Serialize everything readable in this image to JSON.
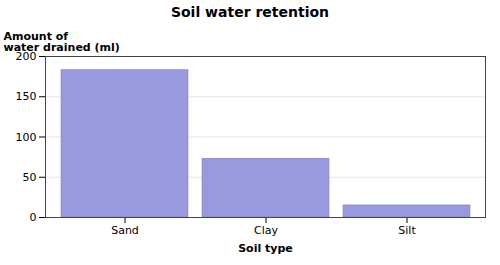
{
  "chart_data": {
    "type": "bar",
    "title": "Soil water retention",
    "xlabel": "Soil type",
    "ylabel": "Amount of\nwater drained (ml)",
    "categories": [
      "Sand",
      "Clay",
      "Silt"
    ],
    "values": [
      183,
      73,
      15
    ],
    "color": "#9999dd",
    "ylim": [
      0,
      200
    ],
    "yticks": [
      0,
      50,
      100,
      150,
      200
    ],
    "grid": true
  }
}
